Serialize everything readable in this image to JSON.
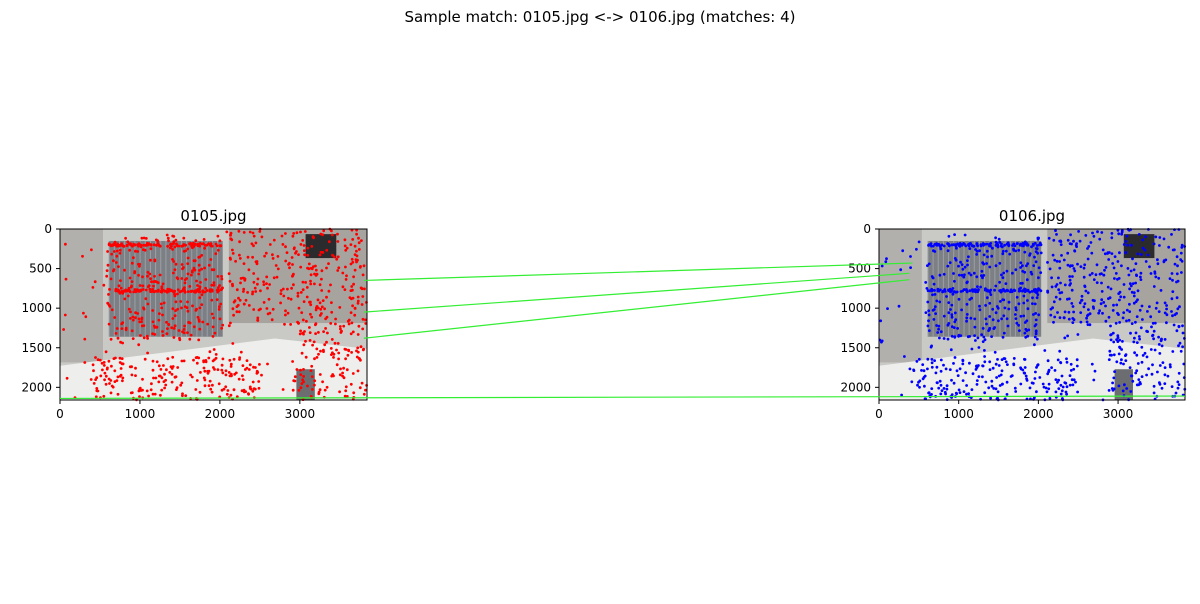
{
  "figure": {
    "title": "Sample match: 0105.jpg <-> 0106.jpg (matches: 4)"
  },
  "chart_data": [
    {
      "type": "scatter",
      "title": "0105.jpg",
      "xlim": [
        0,
        3840
      ],
      "ylim": [
        2160,
        0
      ],
      "x_ticks": [
        0,
        1000,
        2000,
        3000
      ],
      "y_ticks": [
        0,
        500,
        1000,
        1500,
        2000
      ],
      "x_tick_labels": [
        "0",
        "1000",
        "2000",
        "3000"
      ],
      "y_tick_labels": [
        "0",
        "500",
        "1000",
        "1500",
        "2000"
      ],
      "keypoint_color": "#ff0000",
      "keypoints_note": "dense red keypoints drawn over image"
    },
    {
      "type": "scatter",
      "title": "0106.jpg",
      "xlim": [
        0,
        3840
      ],
      "ylim": [
        2160,
        0
      ],
      "x_ticks": [
        0,
        1000,
        2000,
        3000
      ],
      "y_ticks": [
        0,
        500,
        1000,
        1500,
        2000
      ],
      "x_tick_labels": [
        "0",
        "1000",
        "2000",
        "3000"
      ],
      "y_tick_labels": [
        "0",
        "500",
        "1000",
        "1500",
        "2000"
      ],
      "keypoint_color": "#0000ff",
      "keypoints_note": "dense blue keypoints drawn over image"
    }
  ],
  "matches": {
    "color": "#33ee33",
    "lines": [
      {
        "from": [
          3800,
          650
        ],
        "to": [
          420,
          430
        ]
      },
      {
        "from": [
          3800,
          1050
        ],
        "to": [
          380,
          560
        ]
      },
      {
        "from": [
          3800,
          1380
        ],
        "to": [
          380,
          640
        ]
      },
      {
        "from": [
          0,
          2140
        ],
        "to": [
          3840,
          2110
        ]
      }
    ]
  }
}
